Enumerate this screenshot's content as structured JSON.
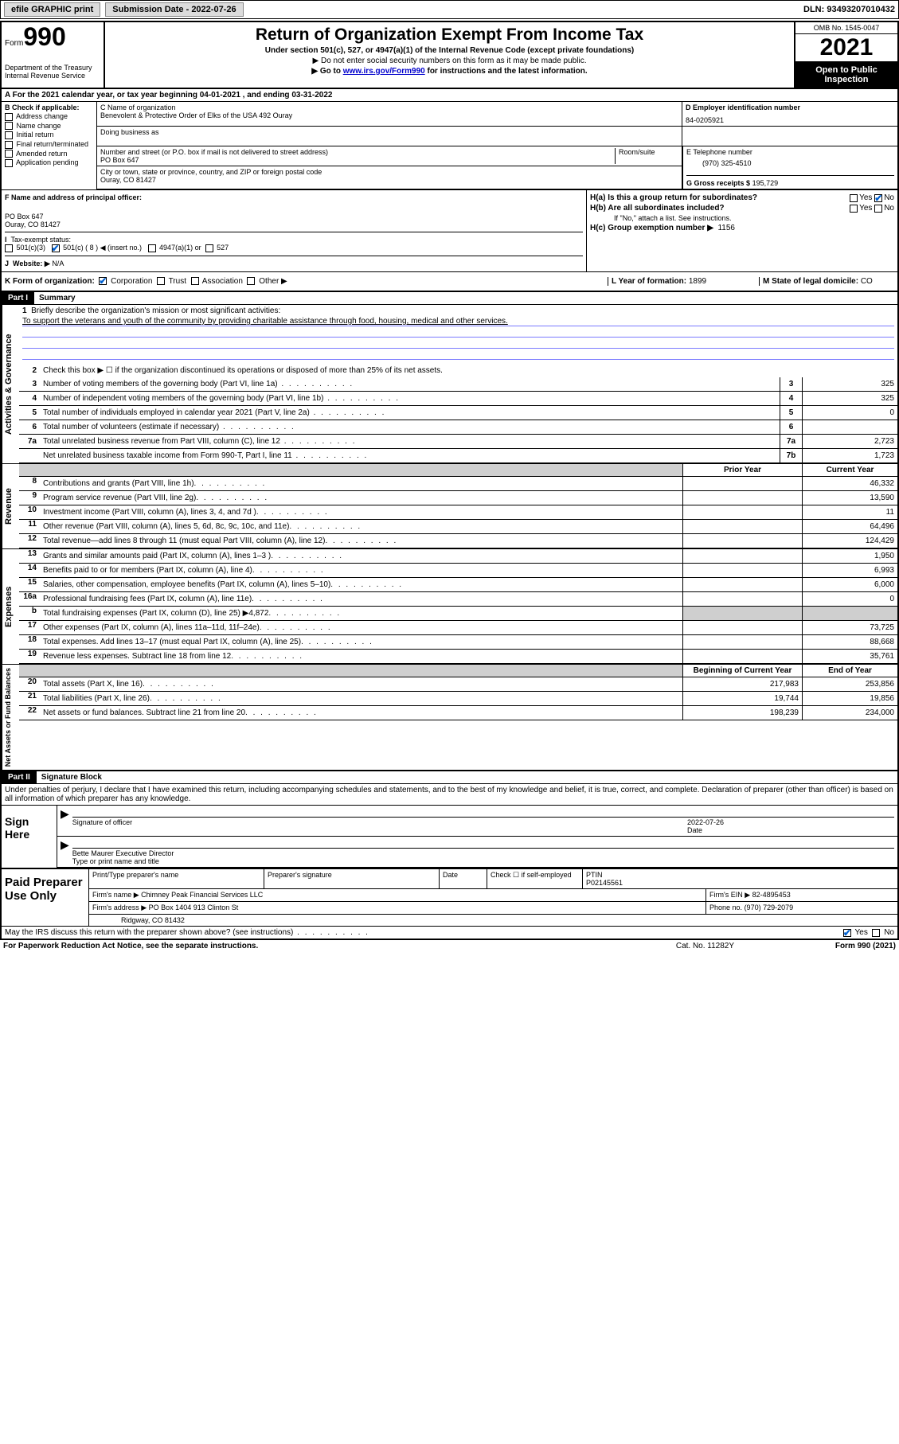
{
  "topbar": {
    "efile": "efile GRAPHIC print",
    "sub_label": "Submission Date - 2022-07-26",
    "dln": "DLN: 93493207010432"
  },
  "header": {
    "form_word": "Form",
    "form_no": "990",
    "dept": "Department of the Treasury",
    "irs": "Internal Revenue Service",
    "title": "Return of Organization Exempt From Income Tax",
    "sub": "Under section 501(c), 527, or 4947(a)(1) of the Internal Revenue Code (except private foundations)",
    "note1": "▶ Do not enter social security numbers on this form as it may be made public.",
    "note2_pre": "▶ Go to ",
    "note2_link": "www.irs.gov/Form990",
    "note2_post": " for instructions and the latest information.",
    "omb": "OMB No. 1545-0047",
    "year": "2021",
    "inspect": "Open to Public Inspection"
  },
  "rowA": "A For the 2021 calendar year, or tax year beginning 04-01-2021   , and ending 03-31-2022",
  "colB": {
    "label": "B Check if applicable:",
    "items": [
      "Address change",
      "Name change",
      "Initial return",
      "Final return/terminated",
      "Amended return",
      "Application pending"
    ]
  },
  "colC": {
    "name_lbl": "C Name of organization",
    "name": "Benevolent & Protective Order of Elks of the USA 492 Ouray",
    "dba_lbl": "Doing business as",
    "addr_lbl": "Number and street (or P.O. box if mail is not delivered to street address)",
    "room_lbl": "Room/suite",
    "addr": "PO Box 647",
    "city_lbl": "City or town, state or province, country, and ZIP or foreign postal code",
    "city": "Ouray, CO  81427"
  },
  "colD": {
    "ein_lbl": "D Employer identification number",
    "ein": "84-0205921",
    "tel_lbl": "E Telephone number",
    "tel": "(970) 325-4510",
    "gross_lbl": "G Gross receipts $",
    "gross": "195,729"
  },
  "rowF": {
    "lbl": "F  Name and address of principal officer:",
    "addr1": "PO Box 647",
    "addr2": "Ouray, CO  81427"
  },
  "rowH": {
    "ha": "H(a)  Is this a group return for subordinates?",
    "hb": "H(b)  Are all subordinates included?",
    "hb_note": "If \"No,\" attach a list. See instructions.",
    "hc": "H(c)  Group exemption number ▶",
    "hc_val": "1156",
    "yes": "Yes",
    "no": "No"
  },
  "rowI": {
    "lbl": "Tax-exempt status:",
    "o1": "501(c)(3)",
    "o2": "501(c) ( 8 ) ◀ (insert no.)",
    "o3": "4947(a)(1) or",
    "o4": "527"
  },
  "rowJ": {
    "lbl": "Website: ▶",
    "val": "N/A"
  },
  "rowK": {
    "lbl": "K Form of organization:",
    "o1": "Corporation",
    "o2": "Trust",
    "o3": "Association",
    "o4": "Other ▶",
    "L_lbl": "L Year of formation:",
    "L_val": "1899",
    "M_lbl": "M State of legal domicile:",
    "M_val": "CO"
  },
  "part1": {
    "hdr": "Part I",
    "title": "Summary",
    "l1_lbl": "Briefly describe the organization's mission or most significant activities:",
    "l1_txt": "To support the veterans and youth of the community by providing charitable assistance through food, housing, medical and other services.",
    "l2": "Check this box ▶ ☐  if the organization discontinued its operations or disposed of more than 25% of its net assets.",
    "lines_gov": [
      {
        "n": "3",
        "t": "Number of voting members of the governing body (Part VI, line 1a)",
        "box": "3",
        "v": "325"
      },
      {
        "n": "4",
        "t": "Number of independent voting members of the governing body (Part VI, line 1b)",
        "box": "4",
        "v": "325"
      },
      {
        "n": "5",
        "t": "Total number of individuals employed in calendar year 2021 (Part V, line 2a)",
        "box": "5",
        "v": "0"
      },
      {
        "n": "6",
        "t": "Total number of volunteers (estimate if necessary)",
        "box": "6",
        "v": ""
      },
      {
        "n": "7a",
        "t": "Total unrelated business revenue from Part VIII, column (C), line 12",
        "box": "7a",
        "v": "2,723"
      },
      {
        "n": "",
        "t": "Net unrelated business taxable income from Form 990-T, Part I, line 11",
        "box": "7b",
        "v": "1,723"
      }
    ],
    "col_hdr1": "Prior Year",
    "col_hdr2": "Current Year",
    "lines_rev": [
      {
        "n": "8",
        "t": "Contributions and grants (Part VIII, line 1h)",
        "v1": "",
        "v2": "46,332"
      },
      {
        "n": "9",
        "t": "Program service revenue (Part VIII, line 2g)",
        "v1": "",
        "v2": "13,590"
      },
      {
        "n": "10",
        "t": "Investment income (Part VIII, column (A), lines 3, 4, and 7d )",
        "v1": "",
        "v2": "11"
      },
      {
        "n": "11",
        "t": "Other revenue (Part VIII, column (A), lines 5, 6d, 8c, 9c, 10c, and 11e)",
        "v1": "",
        "v2": "64,496"
      },
      {
        "n": "12",
        "t": "Total revenue—add lines 8 through 11 (must equal Part VIII, column (A), line 12)",
        "v1": "",
        "v2": "124,429"
      }
    ],
    "lines_exp": [
      {
        "n": "13",
        "t": "Grants and similar amounts paid (Part IX, column (A), lines 1–3 )",
        "v1": "",
        "v2": "1,950"
      },
      {
        "n": "14",
        "t": "Benefits paid to or for members (Part IX, column (A), line 4)",
        "v1": "",
        "v2": "6,993"
      },
      {
        "n": "15",
        "t": "Salaries, other compensation, employee benefits (Part IX, column (A), lines 5–10)",
        "v1": "",
        "v2": "6,000"
      },
      {
        "n": "16a",
        "t": "Professional fundraising fees (Part IX, column (A), line 11e)",
        "v1": "",
        "v2": "0"
      },
      {
        "n": "b",
        "t": "Total fundraising expenses (Part IX, column (D), line 25) ▶4,872",
        "v1": "shade",
        "v2": "shade"
      },
      {
        "n": "17",
        "t": "Other expenses (Part IX, column (A), lines 11a–11d, 11f–24e)",
        "v1": "",
        "v2": "73,725"
      },
      {
        "n": "18",
        "t": "Total expenses. Add lines 13–17 (must equal Part IX, column (A), line 25)",
        "v1": "",
        "v2": "88,668"
      },
      {
        "n": "19",
        "t": "Revenue less expenses. Subtract line 18 from line 12",
        "v1": "",
        "v2": "35,761"
      }
    ],
    "col_hdr3": "Beginning of Current Year",
    "col_hdr4": "End of Year",
    "lines_net": [
      {
        "n": "20",
        "t": "Total assets (Part X, line 16)",
        "v1": "217,983",
        "v2": "253,856"
      },
      {
        "n": "21",
        "t": "Total liabilities (Part X, line 26)",
        "v1": "19,744",
        "v2": "19,856"
      },
      {
        "n": "22",
        "t": "Net assets or fund balances. Subtract line 21 from line 20",
        "v1": "198,239",
        "v2": "234,000"
      }
    ],
    "side_gov": "Activities & Governance",
    "side_rev": "Revenue",
    "side_exp": "Expenses",
    "side_net": "Net Assets or Fund Balances"
  },
  "part2": {
    "hdr": "Part II",
    "title": "Signature Block",
    "decl": "Under penalties of perjury, I declare that I have examined this return, including accompanying schedules and statements, and to the best of my knowledge and belief, it is true, correct, and complete. Declaration of preparer (other than officer) is based on all information of which preparer has any knowledge.",
    "sign_here": "Sign Here",
    "sig_officer": "Signature of officer",
    "sig_date_lbl": "Date",
    "sig_date": "2022-07-26",
    "officer_name": "Bette Maurer Executive Director",
    "officer_sub": "Type or print name and title",
    "paid": "Paid Preparer Use Only",
    "p_name_lbl": "Print/Type preparer's name",
    "p_sig_lbl": "Preparer's signature",
    "p_date_lbl": "Date",
    "p_check": "Check ☐ if self-employed",
    "ptin_lbl": "PTIN",
    "ptin": "P02145561",
    "firm_name_lbl": "Firm's name   ▶",
    "firm_name": "Chimney Peak Financial Services LLC",
    "firm_ein_lbl": "Firm's EIN ▶",
    "firm_ein": "82-4895453",
    "firm_addr_lbl": "Firm's address ▶",
    "firm_addr1": "PO Box 1404 913 Clinton St",
    "firm_addr2": "Ridgway, CO  81432",
    "phone_lbl": "Phone no.",
    "phone": "(970) 729-2079",
    "discuss": "May the IRS discuss this return with the preparer shown above? (see instructions)",
    "paperwork": "For Paperwork Reduction Act Notice, see the separate instructions.",
    "catno": "Cat. No. 11282Y",
    "formfoot": "Form 990 (2021)"
  }
}
